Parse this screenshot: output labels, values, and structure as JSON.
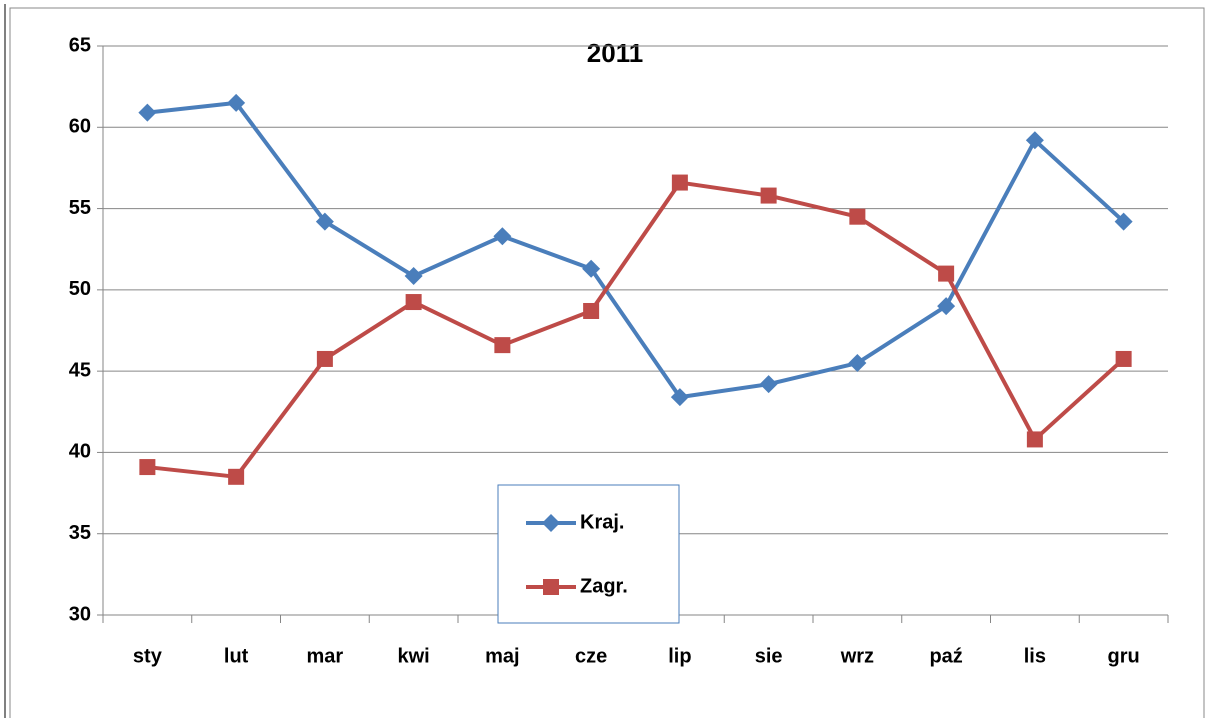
{
  "chart_data": {
    "type": "line",
    "title": "2011",
    "categories": [
      "sty",
      "lut",
      "mar",
      "kwi",
      "maj",
      "cze",
      "lip",
      "sie",
      "wrz",
      "paź",
      "lis",
      "gru"
    ],
    "series": [
      {
        "name": "Kraj.",
        "color": "#4a7ebb",
        "marker": "diamond",
        "values": [
          60.9,
          61.5,
          54.2,
          50.85,
          53.3,
          51.3,
          43.4,
          44.2,
          45.5,
          49.0,
          59.2,
          54.2
        ]
      },
      {
        "name": "Zagr.",
        "color": "#be4b48",
        "marker": "square",
        "values": [
          39.1,
          38.5,
          45.75,
          49.25,
          46.6,
          48.7,
          56.6,
          55.8,
          54.5,
          51.0,
          40.8,
          45.75
        ]
      }
    ],
    "ylim": [
      30,
      65
    ],
    "yticks": [
      30,
      35,
      40,
      45,
      50,
      55,
      60,
      65
    ],
    "grid": true,
    "legend": "bottom"
  }
}
